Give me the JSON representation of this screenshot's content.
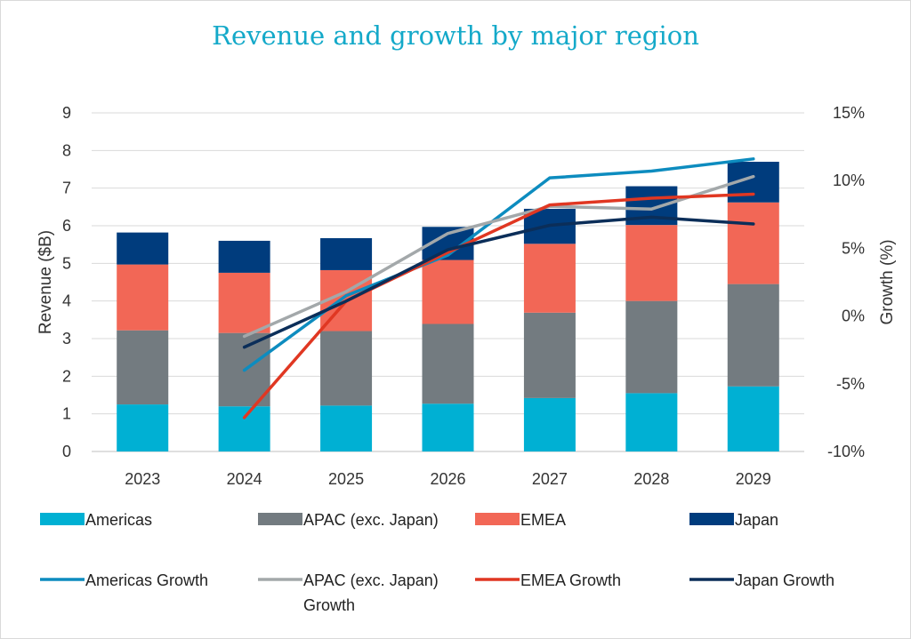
{
  "chart_data": {
    "type": "bar",
    "title": "Revenue and growth by major region",
    "categories": [
      "2023",
      "2024",
      "2025",
      "2026",
      "2027",
      "2028",
      "2029"
    ],
    "ylabel": "Revenue ($B)",
    "y2label": "Growth (%)",
    "ylim": [
      0,
      9
    ],
    "y2lim": [
      -10,
      15
    ],
    "yticks": [
      "0",
      "1",
      "2",
      "3",
      "4",
      "5",
      "6",
      "7",
      "8",
      "9"
    ],
    "y2ticks": [
      "-10%",
      "-5%",
      "0%",
      "5%",
      "10%",
      "15%"
    ],
    "series": [
      {
        "name": "Americas",
        "color": "#00b0d3",
        "values": [
          1.25,
          1.2,
          1.22,
          1.27,
          1.42,
          1.55,
          1.73
        ]
      },
      {
        "name": "APAC (exc. Japan)",
        "color": "#737b80",
        "values": [
          1.97,
          1.95,
          1.98,
          2.12,
          2.27,
          2.45,
          2.72
        ]
      },
      {
        "name": "EMEA",
        "color": "#f26756",
        "values": [
          1.75,
          1.6,
          1.62,
          1.7,
          1.83,
          2.02,
          2.17
        ]
      },
      {
        "name": "Japan",
        "color": "#003c7d",
        "values": [
          0.85,
          0.85,
          0.85,
          0.88,
          0.93,
          1.03,
          1.08
        ]
      }
    ],
    "growth_series": [
      {
        "name": "Americas Growth",
        "color": "#0d8cbf",
        "values": [
          null,
          -4.0,
          1.5,
          4.5,
          10.2,
          10.7,
          11.6
        ]
      },
      {
        "name": "APAC (exc. Japan) Growth",
        "color": "#a3a8aa",
        "values": [
          null,
          -1.5,
          1.8,
          6.1,
          8.1,
          7.9,
          10.3
        ]
      },
      {
        "name": "EMEA Growth",
        "color": "#e03722",
        "values": [
          null,
          -7.5,
          1.1,
          4.7,
          8.2,
          8.7,
          9.0
        ]
      },
      {
        "name": "Japan Growth",
        "color": "#0b2e59",
        "values": [
          null,
          -2.3,
          1.1,
          4.9,
          6.7,
          7.3,
          6.8
        ]
      }
    ],
    "legend": [
      {
        "label": "Americas",
        "kind": "bar",
        "color": "#00b0d3"
      },
      {
        "label": "APAC (exc. Japan)",
        "kind": "bar",
        "color": "#737b80"
      },
      {
        "label": "EMEA",
        "kind": "bar",
        "color": "#f26756"
      },
      {
        "label": "Japan",
        "kind": "bar",
        "color": "#003c7d"
      },
      {
        "label": "Americas Growth",
        "kind": "line",
        "color": "#0d8cbf"
      },
      {
        "label": "APAC (exc. Japan)",
        "label2": "Growth",
        "kind": "line",
        "color": "#a3a8aa"
      },
      {
        "label": "EMEA Growth",
        "kind": "line",
        "color": "#e03722"
      },
      {
        "label": "Japan Growth",
        "kind": "line",
        "color": "#0b2e59"
      }
    ]
  }
}
